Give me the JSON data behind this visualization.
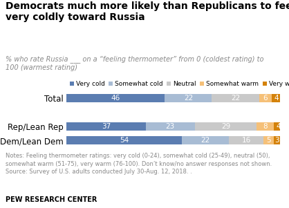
{
  "title": "Democrats much more likely than Republicans to feel\nvery coldly toward Russia",
  "subtitle": "% who rate Russia ___ on a “feeling thermometer” from 0 (coldest rating) to\n100 (warmest rating)",
  "categories": [
    "Total",
    "Rep/Lean Rep",
    "Dem/Lean Dem"
  ],
  "legend_labels": [
    "Very cold",
    "Somewhat cold",
    "Neutral",
    "Somewhat warm",
    "Very warm"
  ],
  "colors": [
    "#5b7db1",
    "#a8bcd4",
    "#c9c9c9",
    "#f5c078",
    "#d4820a"
  ],
  "data": [
    [
      46,
      22,
      22,
      6,
      4
    ],
    [
      37,
      23,
      29,
      8,
      4
    ],
    [
      54,
      22,
      16,
      5,
      3
    ]
  ],
  "notes_line1": "Notes: Feeling thermometer ratings: very cold (0-24), somewhat cold (25-49), neutral (50),",
  "notes_line2": "somewhat warm (51-75), very warm (76-100). Don’t know/no answer responses not shown.",
  "notes_line3": "Source: Survey of U.S. adults conducted July 30-Aug. 12, 2018. .",
  "source": "PEW RESEARCH CENTER",
  "title_color": "#000000",
  "subtitle_color": "#888888",
  "notes_color": "#888888",
  "background_color": "#ffffff",
  "label_color_dark": "#ffffff",
  "label_color_warm": "#ffffff"
}
